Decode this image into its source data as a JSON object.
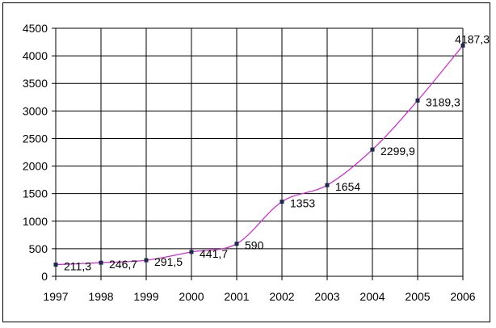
{
  "chart_data": {
    "type": "line",
    "title": "",
    "xlabel": "",
    "ylabel": "",
    "categories": [
      "1997",
      "1998",
      "1999",
      "2000",
      "2001",
      "2002",
      "2003",
      "2004",
      "2005",
      "2006"
    ],
    "series": [
      {
        "values": [
          211.3,
          246.7,
          291.5,
          441.7,
          590,
          1353,
          1654,
          2299.9,
          3189.3,
          4187.3
        ],
        "data_labels": [
          "211,3",
          "246,7",
          "291,5",
          "441,7",
          "590",
          "1353",
          "1654",
          "2299,9",
          "3189,3",
          "4187,3"
        ],
        "color": "#cc33cc",
        "marker_color": "#1a2a4a"
      }
    ],
    "ylim": [
      0,
      4500
    ],
    "yticks": [
      0,
      500,
      1000,
      1500,
      2000,
      2500,
      3000,
      3500,
      4000,
      4500
    ],
    "grid": true,
    "legend": "none"
  }
}
